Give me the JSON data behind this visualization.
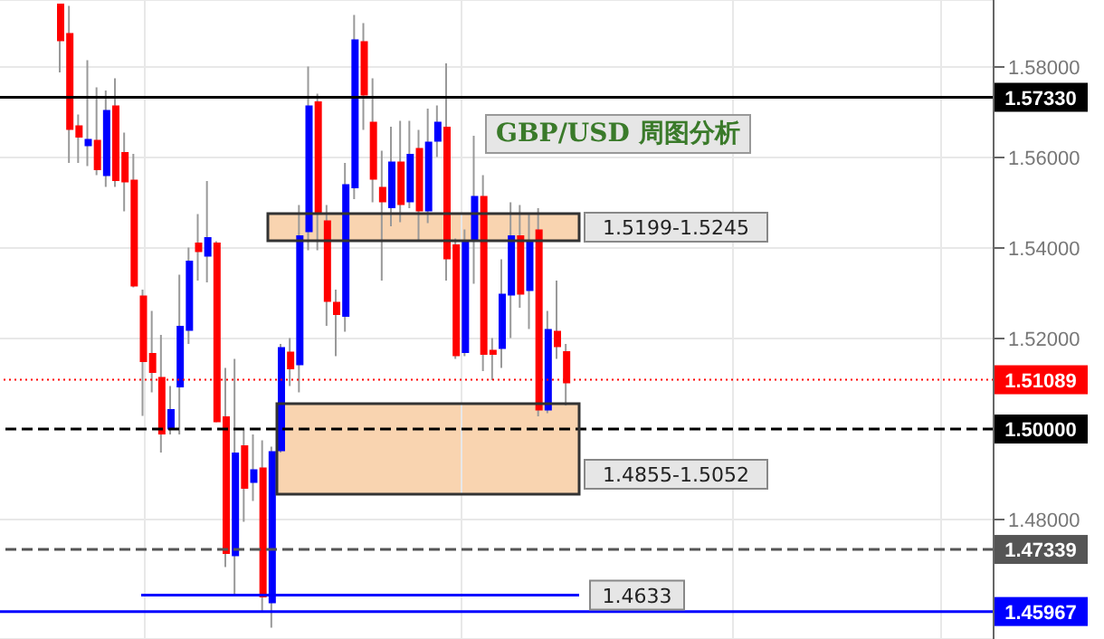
{
  "chart_data": {
    "type": "candlestick",
    "title": "GBP/USD 周图分析",
    "categories": [
      null,
      null,
      null,
      null,
      null,
      null,
      null,
      null,
      null,
      null,
      null,
      null,
      null,
      null,
      null,
      null,
      null,
      null,
      null,
      null,
      null,
      null,
      null,
      null,
      null,
      null,
      null,
      null,
      null,
      null,
      null,
      null,
      null,
      null,
      null,
      null,
      null,
      null,
      null,
      null,
      null,
      null,
      null,
      null,
      null,
      null,
      null,
      null,
      null,
      null,
      null,
      null,
      null,
      null,
      null,
      null,
      null,
      null,
      null,
      null,
      null,
      null,
      null,
      null,
      null,
      null,
      null,
      null,
      null,
      null,
      null,
      null,
      null,
      null,
      null,
      null,
      null,
      null,
      null,
      null,
      null,
      null,
      null,
      null,
      null,
      null,
      null,
      null,
      null,
      null,
      null,
      null,
      null,
      null,
      null,
      null,
      null,
      null,
      null,
      null,
      null,
      null,
      null,
      null,
      null,
      null,
      null,
      null
    ],
    "ohlc": [
      null,
      null,
      null,
      null,
      null,
      null,
      [
        1.594,
        1.594,
        1.5788,
        1.5857
      ],
      [
        1.5875,
        1.5935,
        1.5588,
        1.5661
      ],
      [
        1.5671,
        1.5695,
        1.5588,
        1.5644
      ],
      [
        1.5625,
        1.5815,
        1.5581,
        1.5641
      ],
      [
        1.5639,
        1.5755,
        1.5561,
        1.5572
      ],
      [
        1.5559,
        1.5748,
        1.5535,
        1.5705
      ],
      [
        1.5715,
        1.5775,
        1.5535,
        1.5548
      ],
      [
        1.5612,
        1.5655,
        1.5481,
        1.5545
      ],
      [
        1.5551,
        1.5608,
        1.5313,
        1.5315
      ],
      [
        1.5295,
        1.5308,
        1.5029,
        1.5148
      ],
      [
        1.5168,
        1.5261,
        1.5081,
        1.5124
      ],
      [
        1.5115,
        1.5208,
        1.4948,
        1.4988
      ],
      [
        1.4999,
        1.5095,
        1.4988,
        1.5044
      ],
      [
        1.5092,
        1.5341,
        1.4988,
        1.5228
      ],
      [
        1.5217,
        1.5401,
        1.5188,
        1.5372
      ],
      [
        1.5412,
        1.5475,
        1.5328,
        1.5391
      ],
      [
        1.5381,
        1.5548,
        1.5324,
        1.5424
      ],
      [
        1.5412,
        1.5415,
        1.5015,
        1.5015
      ],
      [
        1.5028,
        1.5135,
        1.4695,
        1.4724
      ],
      [
        1.4719,
        1.5155,
        1.4635,
        1.4948
      ],
      [
        1.4964,
        1.4999,
        1.4795,
        1.4868
      ],
      [
        1.4881,
        1.4988,
        1.4841,
        1.4911
      ],
      [
        1.4915,
        1.4975,
        1.4595,
        1.4628
      ],
      [
        1.4615,
        1.4961,
        1.4561,
        1.4951
      ],
      [
        1.4951,
        1.5188,
        1.4948,
        1.5181
      ],
      [
        1.5171,
        1.5201,
        1.5095,
        1.5132
      ],
      [
        1.5141,
        1.5495,
        1.5081,
        1.5428
      ],
      [
        1.5435,
        1.5801,
        1.5395,
        1.5715
      ],
      [
        1.5724,
        1.5741,
        1.5395,
        1.5475
      ],
      [
        1.5461,
        1.5495,
        1.5228,
        1.5281
      ],
      [
        1.5281,
        1.5308,
        1.5161,
        1.5252
      ],
      [
        1.5248,
        1.5588,
        1.5215,
        1.5541
      ],
      [
        1.5532,
        1.5915,
        1.5508,
        1.5861
      ],
      [
        1.5857,
        1.5897,
        1.5661,
        1.5737
      ],
      [
        1.5679,
        1.5775,
        1.5501,
        1.5551
      ],
      [
        1.5535,
        1.5615,
        1.5328,
        1.5501
      ],
      [
        1.5488,
        1.5668,
        1.5448,
        1.5591
      ],
      [
        1.5591,
        1.5681,
        1.5457,
        1.5495
      ],
      [
        1.5501,
        1.5681,
        1.5488,
        1.5608
      ],
      [
        1.5621,
        1.5661,
        1.5417,
        1.5481
      ],
      [
        1.5481,
        1.5708,
        1.5455,
        1.5635
      ],
      [
        1.5635,
        1.5715,
        1.5601,
        1.5679
      ],
      [
        1.5668,
        1.5808,
        1.5328,
        1.5375
      ],
      [
        1.5408,
        1.5421,
        1.5155,
        1.5161
      ],
      [
        1.5168,
        1.5441,
        1.5161,
        1.5417
      ],
      [
        1.5415,
        1.5648,
        1.5321,
        1.5515
      ],
      [
        1.5515,
        1.5561,
        1.5128,
        1.5164
      ],
      [
        1.5175,
        1.5201,
        1.5108,
        1.5164
      ],
      [
        1.5177,
        1.5375,
        1.5135,
        1.5299
      ],
      [
        1.5295,
        1.5501,
        1.5201,
        1.5428
      ],
      [
        1.5428,
        1.5495,
        1.5268,
        1.5297
      ],
      [
        1.5305,
        1.5475,
        1.5221,
        1.5415
      ],
      [
        1.5441,
        1.5488,
        1.5028,
        1.5041
      ],
      [
        1.5041,
        1.5261,
        1.5035,
        1.5221
      ],
      [
        1.5217,
        1.5328,
        1.5155,
        1.5181
      ],
      [
        1.5172,
        1.5188,
        1.5052,
        1.5101
      ],
      null,
      null,
      null,
      null,
      null,
      null,
      null,
      null,
      null,
      null,
      null,
      null,
      null,
      null,
      null,
      null,
      null,
      null,
      null,
      null,
      null,
      null,
      null,
      null,
      null,
      null,
      null,
      null,
      null,
      null,
      null,
      null,
      null,
      null,
      null,
      null,
      null,
      null,
      null,
      null,
      null,
      null,
      null,
      null,
      null,
      null
    ],
    "colors": [
      null,
      null,
      null,
      null,
      null,
      null,
      "#ff0000",
      "#ff0000",
      "#ff0000",
      "#0000ff",
      "#ff0000",
      "#0000ff",
      "#ff0000",
      "#ff0000",
      "#ff0000",
      "#ff0000",
      "#ff0000",
      "#ff0000",
      "#0000ff",
      "#0000ff",
      "#0000ff",
      "#ff0000",
      "#0000ff",
      "#ff0000",
      "#ff0000",
      "#0000ff",
      "#ff0000",
      "#0000ff",
      "#ff0000",
      "#0000ff",
      "#0000ff",
      "#ff0000",
      "#0000ff",
      "#0000ff",
      "#ff0000",
      "#ff0000",
      "#ff0000",
      "#0000ff",
      "#0000ff",
      "#ff0000",
      "#ff0000",
      "#ff0000",
      "#0000ff",
      "#ff0000",
      "#0000ff",
      "#ff0000",
      "#0000ff",
      "#0000ff",
      "#ff0000",
      "#ff0000",
      "#0000ff",
      "#0000ff",
      "#ff0000",
      "#ff0000",
      "#0000ff",
      "#0000ff",
      "#ff0000",
      "#0000ff",
      "#ff0000",
      "#0000ff",
      "#ff0000",
      "#ff0000",
      null,
      null,
      null,
      null,
      null,
      null,
      null,
      null,
      null,
      null,
      null,
      null,
      null,
      null,
      null,
      null,
      null,
      null,
      null,
      null,
      null,
      null,
      null,
      null,
      null,
      null,
      null,
      null,
      null,
      null,
      null,
      null,
      null,
      null,
      null,
      null,
      null,
      null,
      null,
      null,
      null,
      null,
      null,
      null,
      null,
      null
    ],
    "ylim": [
      1.4536,
      1.5948
    ],
    "yticks": [
      {
        "value": 1.48,
        "label": "1.48000"
      },
      {
        "value": 1.52,
        "label": "1.52000"
      },
      {
        "value": 1.54,
        "label": "1.54000"
      },
      {
        "value": 1.56,
        "label": "1.56000"
      },
      {
        "value": 1.58,
        "label": "1.58000"
      }
    ],
    "ref_lines": [
      {
        "axis": "y",
        "value": 1.5733,
        "label": "1.57330",
        "color": "#000000",
        "line_style": "solid"
      },
      {
        "axis": "y",
        "value": 1.51089,
        "label": "1.51089",
        "color": "#ff0000",
        "line_style": "dotted"
      },
      {
        "axis": "y",
        "value": 1.5,
        "label": "1.50000",
        "color": "#000000",
        "line_style": "dashed"
      },
      {
        "axis": "y",
        "value": 1.47339,
        "label": "1.47339",
        "color": "#555555",
        "line_style": "dashed"
      },
      {
        "axis": "y",
        "value": 1.45967,
        "label": "1.45967",
        "color": "#0000ff",
        "line_style": "solid"
      },
      {
        "axis": "y",
        "value": 1.4633,
        "label": "1.4633",
        "color": "#0000ff",
        "line_style": "solid"
      }
    ],
    "bands": [
      {
        "axis": "y",
        "from": 1.5416,
        "to": 1.5476,
        "label": "1.5199-1.5245",
        "color": "#f9d4b0"
      },
      {
        "axis": "y",
        "from": 1.4856,
        "to": 1.5056,
        "label": "1.4855-1.5052",
        "color": "#f9d4b0"
      }
    ],
    "grid": true,
    "tick_labels": "y"
  }
}
